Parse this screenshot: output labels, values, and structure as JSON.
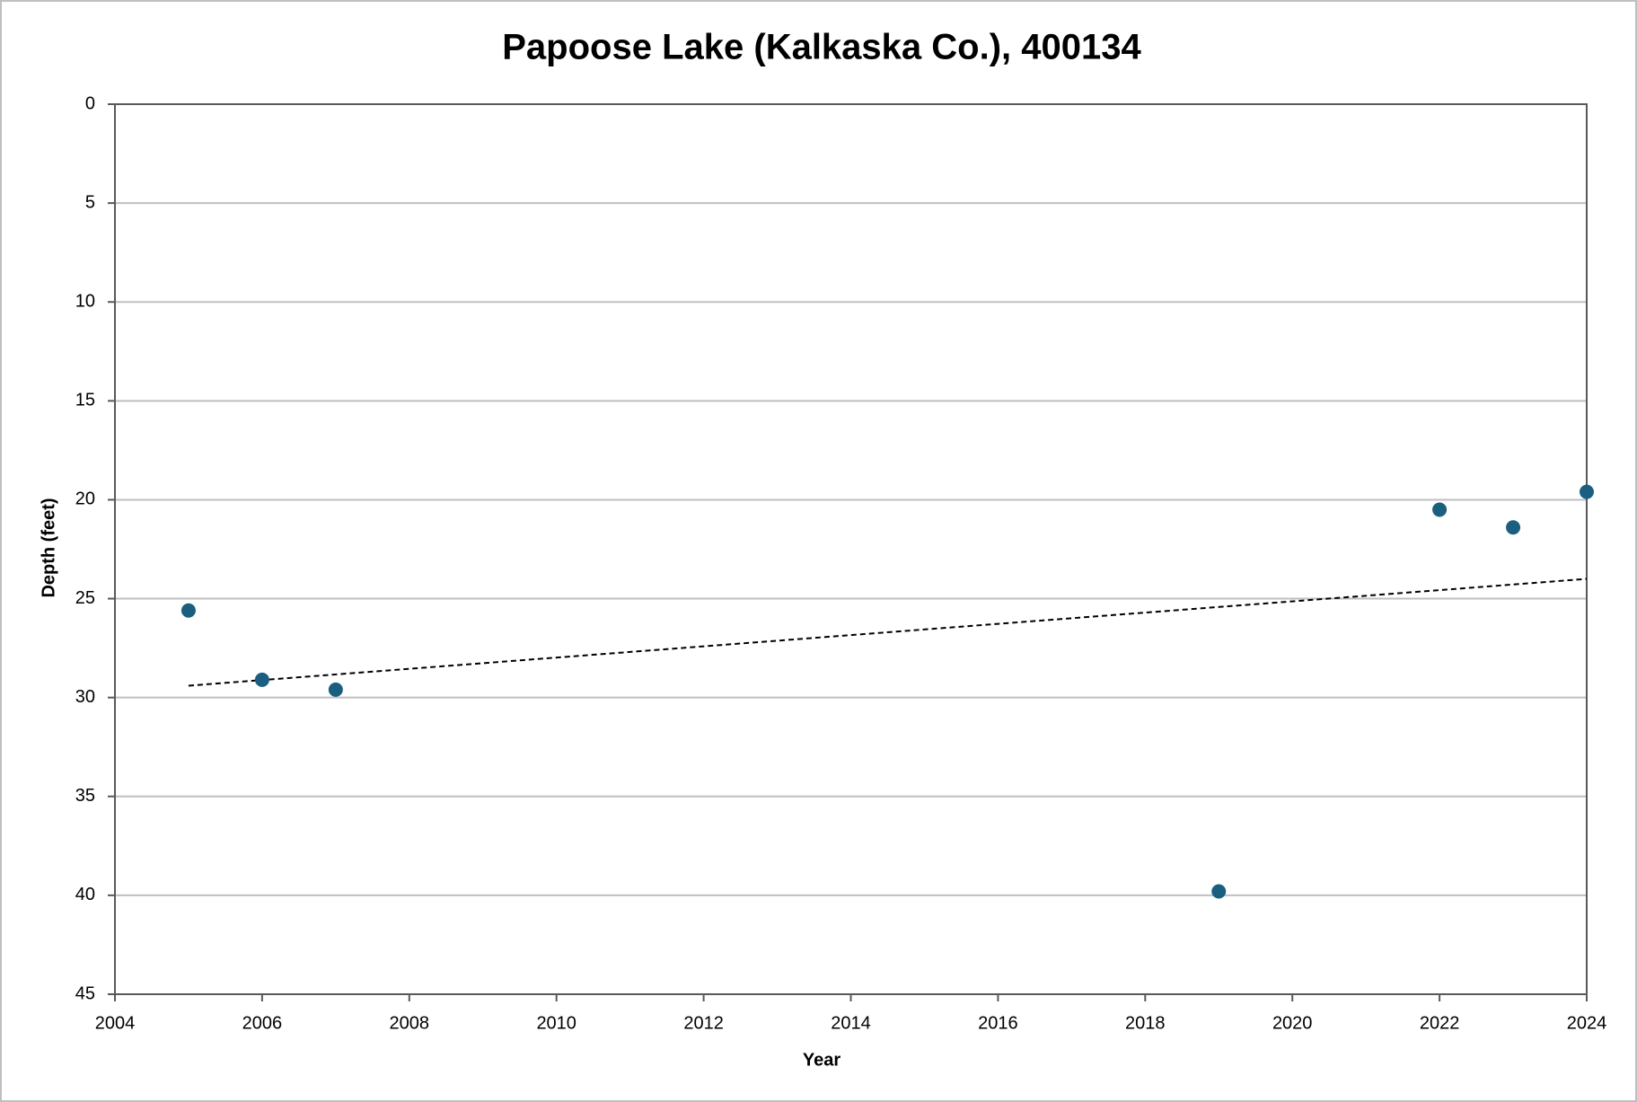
{
  "chart_data": {
    "type": "scatter",
    "title": "Papoose Lake (Kalkaska Co.), 400134",
    "x_label": "Year",
    "y_label": "Depth (feet)",
    "x": [
      2005,
      2006,
      2007,
      2019,
      2022,
      2023,
      2024
    ],
    "series": [
      {
        "color": "#1b5f80",
        "values": [
          25.6,
          29.1,
          29.6,
          39.8,
          20.5,
          21.4,
          19.6
        ]
      }
    ],
    "trendline": {
      "x": [
        2005,
        2024
      ],
      "values": [
        29.4,
        24.0
      ],
      "color": "#000000"
    },
    "xlim": [
      2004,
      2024
    ],
    "xticks": [
      2004,
      2006,
      2008,
      2010,
      2012,
      2014,
      2016,
      2018,
      2020,
      2022,
      2024
    ],
    "ylim": [
      0,
      45
    ],
    "yticks": [
      0,
      5,
      10,
      15,
      20,
      25,
      30,
      35,
      40,
      45
    ],
    "y_inverted": true,
    "grid": true
  }
}
